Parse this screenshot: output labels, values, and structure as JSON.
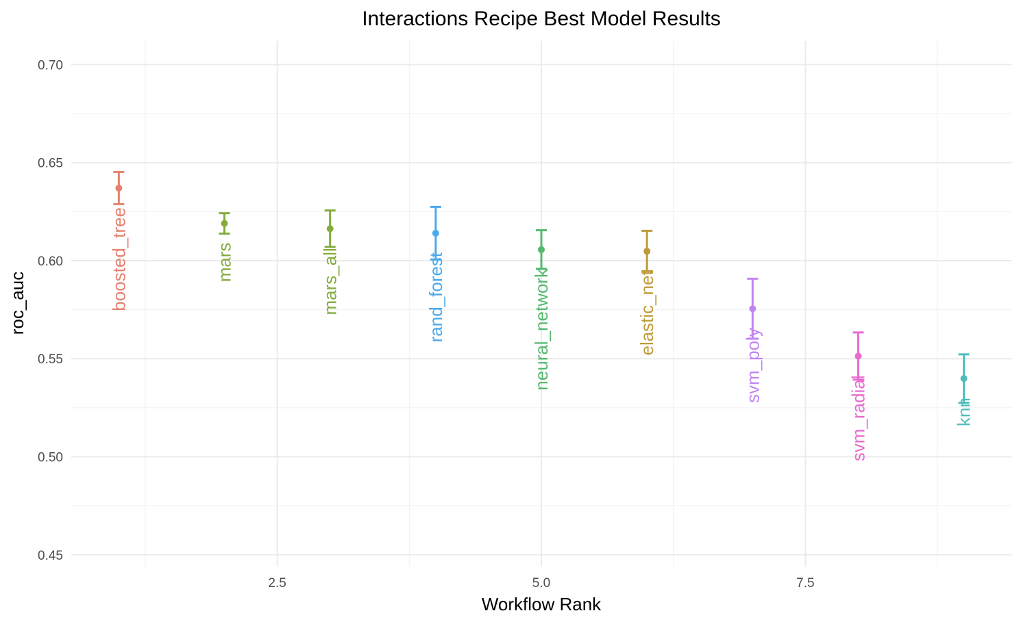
{
  "chart_data": {
    "type": "scatter",
    "title": "Interactions Recipe Best Model Results",
    "xlabel": "Workflow Rank",
    "ylabel": "roc_auc",
    "xlim": [
      0.55,
      9.45
    ],
    "ylim": [
      0.444,
      0.712
    ],
    "x_ticks": [
      2.5,
      5.0,
      7.5
    ],
    "x_tick_labels": [
      "2.5",
      "5.0",
      "7.5"
    ],
    "y_ticks": [
      0.45,
      0.5,
      0.55,
      0.6,
      0.65,
      0.7
    ],
    "y_tick_labels": [
      "0.45",
      "0.50",
      "0.55",
      "0.60",
      "0.65",
      "0.70"
    ],
    "grid": true,
    "legend": "none",
    "error_bars": true,
    "points": [
      {
        "rank": 1,
        "model": "boosted_tree",
        "roc_auc": 0.637,
        "lower": 0.6288,
        "upper": 0.6452,
        "color": "#E7816F"
      },
      {
        "rank": 2,
        "model": "mars",
        "roc_auc": 0.619,
        "lower": 0.6138,
        "upper": 0.6242,
        "color": "#83AC3C"
      },
      {
        "rank": 3,
        "model": "mars_all",
        "roc_auc": 0.6163,
        "lower": 0.607,
        "upper": 0.6256,
        "color": "#83AC3C"
      },
      {
        "rank": 4,
        "model": "rand_forest",
        "roc_auc": 0.614,
        "lower": 0.6006,
        "upper": 0.6274,
        "color": "#4BA9EE"
      },
      {
        "rank": 5,
        "model": "neural_network",
        "roc_auc": 0.6056,
        "lower": 0.5958,
        "upper": 0.6155,
        "color": "#54B86E"
      },
      {
        "rank": 6,
        "model": "elastic_net",
        "roc_auc": 0.6048,
        "lower": 0.5946,
        "upper": 0.6152,
        "color": "#BF9A37"
      },
      {
        "rank": 7,
        "model": "svm_poly",
        "roc_auc": 0.5755,
        "lower": 0.5602,
        "upper": 0.5908,
        "color": "#C284F2"
      },
      {
        "rank": 8,
        "model": "svm_radial",
        "roc_auc": 0.5513,
        "lower": 0.5393,
        "upper": 0.5634,
        "color": "#E86BCF"
      },
      {
        "rank": 9,
        "model": "knn",
        "roc_auc": 0.5399,
        "lower": 0.5275,
        "upper": 0.5522,
        "color": "#4DBDBC"
      }
    ]
  }
}
